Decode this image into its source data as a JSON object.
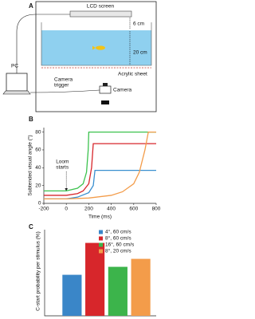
{
  "panel_a": {
    "label": "A",
    "lcd": "LCD screen",
    "depth_top": "6 cm",
    "depth_water": "20 cm",
    "acrylic": "Acrylic sheet",
    "pc": "PC",
    "trigger": [
      "Camera",
      "trigger"
    ],
    "camera": "Camera"
  },
  "chart_data": [
    {
      "type": "line",
      "panel": "B",
      "ylabel": "Subtended visual angle (°)",
      "xlabel": "Time (ms)",
      "annotation": [
        "Loom",
        "starts"
      ],
      "xlim": [
        -200,
        800
      ],
      "xticks": [
        -200,
        0,
        200,
        400,
        600,
        800
      ],
      "ylim": [
        0,
        85
      ],
      "yticks": [
        0,
        20,
        40,
        60,
        80
      ],
      "series": [
        {
          "color": "#3a8fd0",
          "x": [
            -200,
            0,
            100,
            200,
            240,
            255,
            800
          ],
          "values": [
            5,
            5,
            7,
            12,
            20,
            37,
            37
          ]
        },
        {
          "color": "#d7262b",
          "x": [
            -200,
            0,
            100,
            150,
            200,
            225,
            240,
            800
          ],
          "values": [
            9,
            9,
            11,
            14,
            22,
            40,
            67,
            67
          ]
        },
        {
          "color": "#3cc24e",
          "x": [
            -200,
            0,
            100,
            150,
            180,
            195,
            200,
            800
          ],
          "values": [
            14,
            14,
            17,
            22,
            35,
            60,
            80,
            80
          ]
        },
        {
          "color": "#f39c4a",
          "x": [
            -200,
            0,
            200,
            400,
            500,
            600,
            650,
            700,
            730,
            800
          ],
          "values": [
            5,
            5,
            6,
            9,
            13,
            22,
            35,
            60,
            80,
            80
          ]
        }
      ]
    },
    {
      "type": "bar",
      "panel": "C",
      "ylabel": "C-start probability per stimulus (%)",
      "ylim": [
        0,
        70
      ],
      "legend": "upper right",
      "series": [
        {
          "name": "4°, 60 cm/s",
          "color": "#3a86c8",
          "values": [
            36
          ]
        },
        {
          "name": "8°, 60 cm/s",
          "color": "#d7262b",
          "values": [
            64
          ]
        },
        {
          "name": "16°, 60 cm/s",
          "color": "#3cb44b",
          "values": [
            43
          ]
        },
        {
          "name": "8°, 20 cm/s",
          "color": "#f39c4a",
          "values": [
            50
          ]
        }
      ]
    }
  ]
}
